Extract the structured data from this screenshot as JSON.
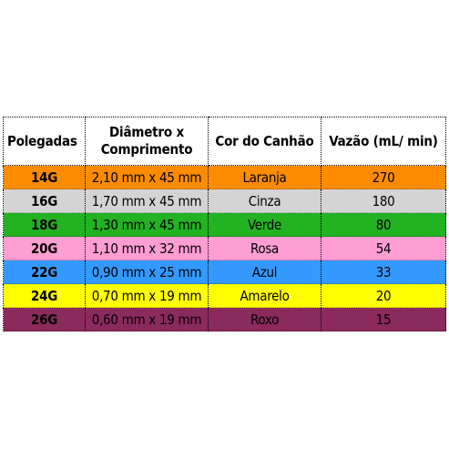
{
  "table": {
    "headers": [
      {
        "lines": [
          "Polegadas"
        ]
      },
      {
        "lines": [
          "Diâmetro x",
          "Comprimento"
        ]
      },
      {
        "lines": [
          "Cor do Canhão"
        ]
      },
      {
        "lines": [
          "Vazão (mL/ min)"
        ]
      }
    ],
    "rows": [
      {
        "gauge": "14G",
        "size": "2,10 mm x 45 mm",
        "color_name": "Laranja",
        "flow": "270",
        "bg": "#ff8c00"
      },
      {
        "gauge": "16G",
        "size": "1,70 mm x 45 mm",
        "color_name": "Cinza",
        "flow": "180",
        "bg": "#d4d4d4"
      },
      {
        "gauge": "18G",
        "size": "1,30 mm x 45 mm",
        "color_name": "Verde",
        "flow": "80",
        "bg": "#22b222"
      },
      {
        "gauge": "20G",
        "size": "1,10 mm x 32 mm",
        "color_name": "Rosa",
        "flow": "54",
        "bg": "#ff9ed2"
      },
      {
        "gauge": "22G",
        "size": "0,90 mm x 25 mm",
        "color_name": "Azul",
        "flow": "33",
        "bg": "#3399ff"
      },
      {
        "gauge": "24G",
        "size": "0,70 mm x 19 mm",
        "color_name": "Amarelo",
        "flow": "20",
        "bg": "#ffff00"
      },
      {
        "gauge": "26G",
        "size": "0,60 mm x 19 mm",
        "color_name": "Roxo",
        "flow": "15",
        "bg": "#8b2a5c"
      }
    ]
  }
}
